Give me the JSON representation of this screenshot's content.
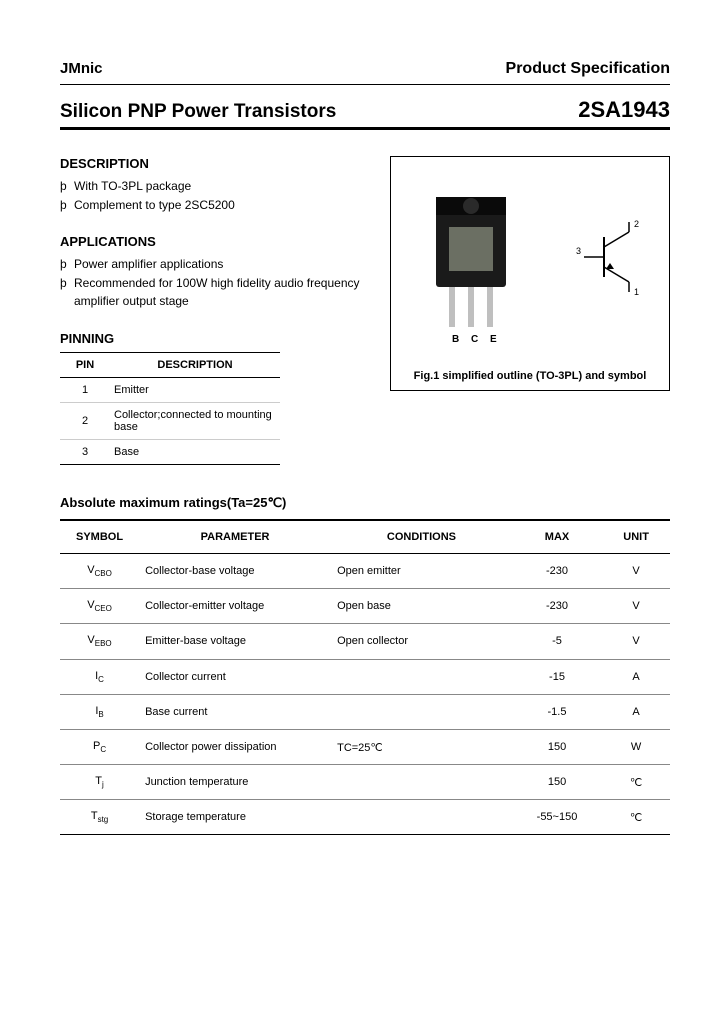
{
  "header": {
    "brand": "JMnic",
    "prodspec": "Product Specification",
    "title_left": "Silicon PNP Power Transistors",
    "title_right": "2SA1943"
  },
  "description": {
    "heading": "DESCRIPTION",
    "items": [
      "With TO-3PL package",
      "Complement to type 2SC5200"
    ]
  },
  "applications": {
    "heading": "APPLICATIONS",
    "items": [
      "Power amplifier applications",
      "Recommended for 100W high fidelity audio frequency amplifier output stage"
    ]
  },
  "pinning": {
    "heading": "PINNING",
    "columns": [
      "PIN",
      "DESCRIPTION"
    ],
    "rows": [
      {
        "pin": "1",
        "desc": "Emitter"
      },
      {
        "pin": "2",
        "desc": "Collector;connected to mounting base"
      },
      {
        "pin": "3",
        "desc": "Base"
      }
    ]
  },
  "figure": {
    "caption": "Fig.1 simplified outline (TO-3PL) and symbol",
    "pin_labels": {
      "b": "B",
      "c": "C",
      "e": "E"
    },
    "symbol_labels": {
      "n1": "1",
      "n2": "2",
      "n3": "3"
    },
    "colors": {
      "pkg_body": "#1a1a1a",
      "pkg_die": "#6b6f63",
      "lead": "#bfbfbf"
    }
  },
  "ratings": {
    "heading": "Absolute maximum ratings(Ta=25℃)",
    "columns": [
      "SYMBOL",
      "PARAMETER",
      "CONDITIONS",
      "MAX",
      "UNIT"
    ],
    "rows": [
      {
        "sym_main": "V",
        "sym_sub": "CBO",
        "param": "Collector-base voltage",
        "cond": "Open emitter",
        "max": "-230",
        "unit": "V"
      },
      {
        "sym_main": "V",
        "sym_sub": "CEO",
        "param": "Collector-emitter voltage",
        "cond": "Open base",
        "max": "-230",
        "unit": "V"
      },
      {
        "sym_main": "V",
        "sym_sub": "EBO",
        "param": "Emitter-base voltage",
        "cond": "Open collector",
        "max": "-5",
        "unit": "V"
      },
      {
        "sym_main": "I",
        "sym_sub": "C",
        "param": "Collector current",
        "cond": "",
        "max": "-15",
        "unit": "A"
      },
      {
        "sym_main": "I",
        "sym_sub": "B",
        "param": "Base current",
        "cond": "",
        "max": "-1.5",
        "unit": "A"
      },
      {
        "sym_main": "P",
        "sym_sub": "C",
        "param": "Collector power dissipation",
        "cond": "TC=25℃",
        "max": "150",
        "unit": "W"
      },
      {
        "sym_main": "T",
        "sym_sub": "j",
        "param": "Junction temperature",
        "cond": "",
        "max": "150",
        "unit": "℃"
      },
      {
        "sym_main": "T",
        "sym_sub": "stg",
        "param": "Storage temperature",
        "cond": "",
        "max": "-55~150",
        "unit": "℃"
      }
    ]
  }
}
